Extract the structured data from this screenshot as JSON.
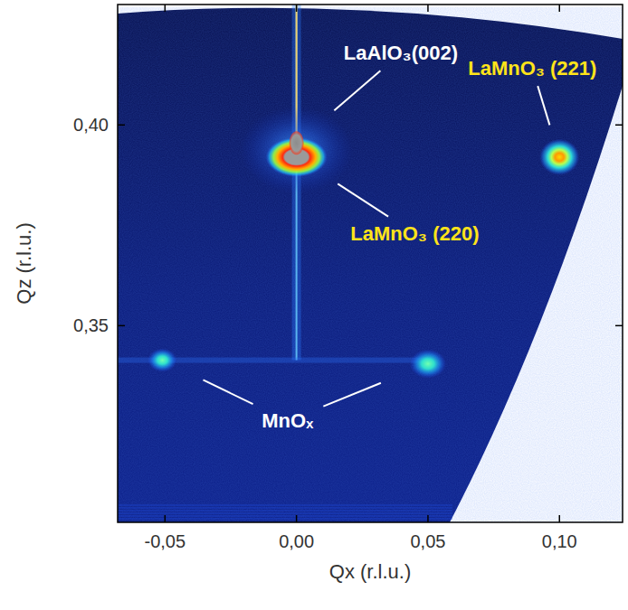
{
  "chart_data": {
    "type": "scatter",
    "x_label": "Qx (r.l.u.)",
    "y_label": "Qz (r.l.u.)",
    "xlim": [
      -0.068,
      0.124
    ],
    "ylim": [
      0.301,
      0.43
    ],
    "xticks": [
      {
        "value": -0.05,
        "label": "-0,05"
      },
      {
        "value": 0.0,
        "label": "0,00"
      },
      {
        "value": 0.05,
        "label": "0,05"
      },
      {
        "value": 0.1,
        "label": "0,10"
      }
    ],
    "yticks": [
      {
        "value": 0.35,
        "label": "0,35"
      },
      {
        "value": 0.4,
        "label": "0,40"
      }
    ],
    "x": [
      0.0,
      0.0,
      0.1,
      -0.051,
      0.05
    ],
    "values": [
      0.3955,
      0.392,
      0.392,
      0.3414,
      0.3405
    ],
    "annotations": [
      {
        "text": "LaAlO₃(002)",
        "x": 0.0397,
        "y": 0.418,
        "color": "#ffffff",
        "points": [
          0
        ]
      },
      {
        "text": "LaMnO₃ (220)",
        "x": 0.045,
        "y": 0.373,
        "color": "#ffe419",
        "points": [
          1
        ]
      },
      {
        "text": "LaMnO₃ (221)",
        "x": 0.0897,
        "y": 0.4142,
        "color": "#ffe419",
        "points": [
          2
        ]
      },
      {
        "text": "MnOₓ",
        "x": -0.0034,
        "y": 0.3264,
        "color": "#ffffff",
        "points": [
          3,
          4
        ]
      }
    ]
  }
}
